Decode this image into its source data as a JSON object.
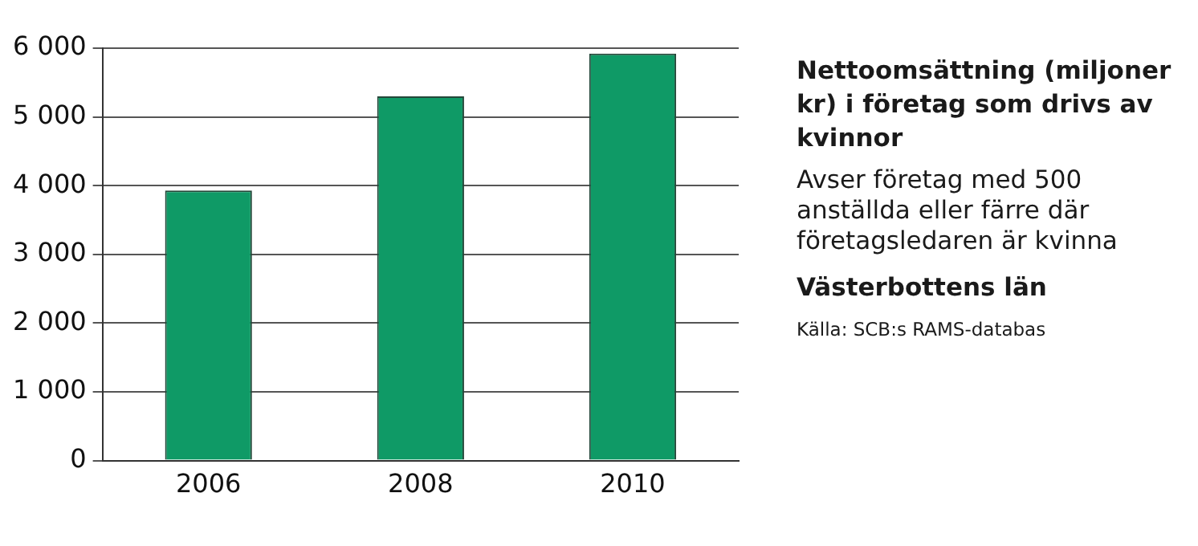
{
  "chart_data": {
    "type": "bar",
    "title": "Nettoomsättning (miljoner kr) i företag som drivs av kvinnor",
    "subtitle": "Avser företag med 500 anställda eller färre där företagsledaren är kvinna",
    "annotations": [
      "Västerbottens län",
      "Källa: SCB:s RAMS-databas"
    ],
    "categories": [
      "2006",
      "2008",
      "2010"
    ],
    "values": [
      3930,
      5300,
      5920
    ],
    "color": "#0f9a66",
    "ylim": [
      0,
      6000
    ],
    "yticks": [
      {
        "value": 0,
        "label": "0"
      },
      {
        "value": 1000,
        "label": "1 000"
      },
      {
        "value": 2000,
        "label": "2 000"
      },
      {
        "value": 3000,
        "label": "3 000"
      },
      {
        "value": 4000,
        "label": "4 000"
      },
      {
        "value": 5000,
        "label": "5 000"
      },
      {
        "value": 6000,
        "label": "6 000"
      }
    ],
    "grid": "y"
  }
}
